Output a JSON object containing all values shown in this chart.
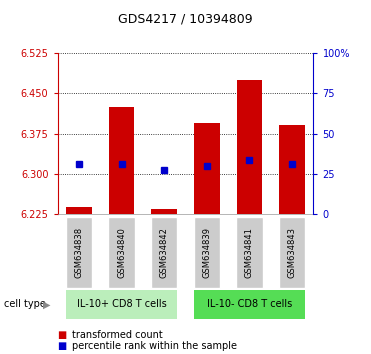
{
  "title": "GDS4217 / 10394809",
  "samples": [
    "GSM634838",
    "GSM634840",
    "GSM634842",
    "GSM634839",
    "GSM634841",
    "GSM634843"
  ],
  "bar_values": [
    6.238,
    6.425,
    6.235,
    6.395,
    6.475,
    6.392
  ],
  "blue_values": [
    6.318,
    6.318,
    6.308,
    6.315,
    6.325,
    6.318
  ],
  "ymin": 6.225,
  "ymax": 6.525,
  "left_yticks": [
    6.225,
    6.3,
    6.375,
    6.45,
    6.525
  ],
  "right_yticks": [
    0,
    25,
    50,
    75,
    100
  ],
  "right_yticklabels": [
    "0",
    "25",
    "50",
    "75",
    "100%"
  ],
  "bar_color": "#cc0000",
  "blue_color": "#0000cc",
  "group1_label": "IL-10+ CD8 T cells",
  "group2_label": "IL-10- CD8 T cells",
  "group1_indices": [
    0,
    1,
    2
  ],
  "group2_indices": [
    3,
    4,
    5
  ],
  "group1_color": "#bbeebb",
  "group2_color": "#55dd55",
  "legend_red_label": "transformed count",
  "legend_blue_label": "percentile rank within the sample",
  "cell_type_label": "cell type",
  "bar_width": 0.6,
  "tick_area_color": "#cccccc",
  "title_fontsize": 9,
  "tick_fontsize": 7,
  "sample_fontsize": 6,
  "group_fontsize": 7,
  "legend_fontsize": 7
}
